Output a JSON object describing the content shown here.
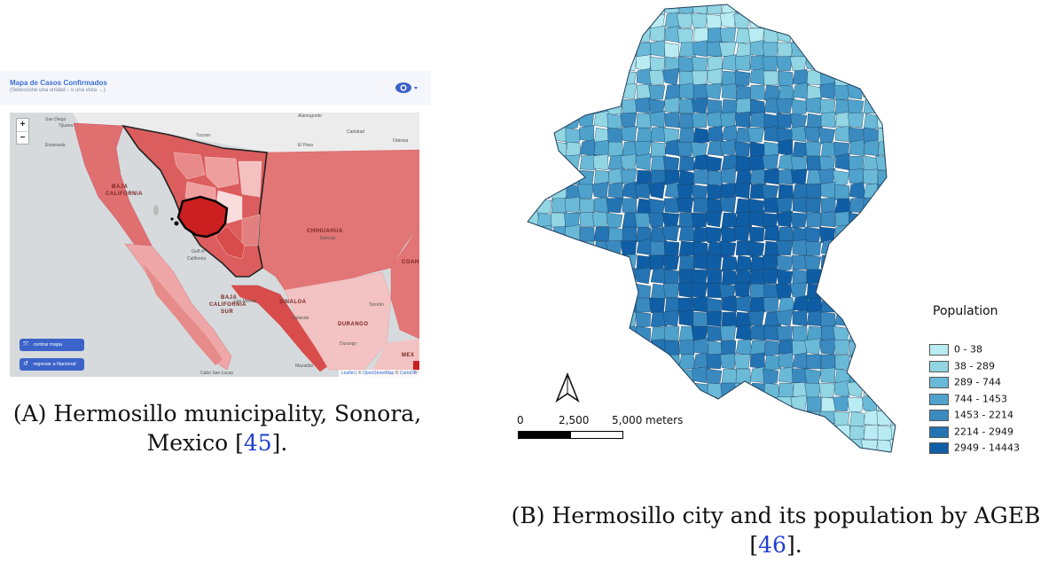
{
  "panel_a": {
    "app": {
      "title": "Mapa de Casos Confirmados",
      "subtitle": "(Seleccione una unidad ↓ o una vista →)"
    },
    "zoom": {
      "in": "+",
      "out": "−"
    },
    "buttons": {
      "center_label": "centrar mapa",
      "center_icon": "⤧",
      "back_label": "regresar a Nacional",
      "back_icon": "↺"
    },
    "attribution": {
      "leaflet": "Leaflet",
      "sep": " | © ",
      "osm": "OpenStreetMap",
      "mid": " © ",
      "carto": "CartoDB"
    },
    "places": {
      "san_diego": "San Diego",
      "tijuana": "Tijuana",
      "ensenada": "Ensenada",
      "tucson": "Tucson",
      "alamogordo": "Alamogordo",
      "carlsbad": "Carlsbad",
      "odessa": "Odessa",
      "el_paso": "El Paso",
      "baja": "BAJA",
      "california": "CALIFORNIA",
      "chihuahua": "CHIHUAHUA",
      "delicias": "Delicias",
      "gulf": "Gulf of",
      "gulf2": "California",
      "baja_sur1": "BAJA",
      "baja_sur2": "CALIFORNIA",
      "baja_sur3": "SUR",
      "los_mochis": "Los Mochis",
      "culiacan": "Culiacán",
      "sinaloa": "SINALOA",
      "torreon": "Torreón",
      "durango": "DURANGO",
      "durango_city": "Durango",
      "mazatlan": "Mazatlán",
      "cabo": "Cabo San Lucas",
      "coah": "COAH",
      "mex": "MEX"
    },
    "colors": {
      "ocean": "#d6dadc",
      "land": "#ececec",
      "state_dark": "#d94c4c",
      "state_mid": "#e27f7f",
      "state_light": "#f0b2b2",
      "highlight": "#cc1f1f",
      "button": "#3b63c9"
    },
    "caption": {
      "line1": "(A) Hermosillo municipality, Sonora,",
      "line2": "Mexico [",
      "ref": "45",
      "tail": "]."
    }
  },
  "panel_b": {
    "legend": {
      "title": "Population",
      "items": [
        {
          "label": "0 - 38",
          "color": "#b9ecf2"
        },
        {
          "label": "38 - 289",
          "color": "#92d5e3"
        },
        {
          "label": "289 - 744",
          "color": "#6ab9d7"
        },
        {
          "label": "744 - 1453",
          "color": "#4ea2cc"
        },
        {
          "label": "1453 - 2214",
          "color": "#3a8ac0"
        },
        {
          "label": "2214 - 2949",
          "color": "#2473b2"
        },
        {
          "label": "2949 - 14443",
          "color": "#0f5ea5"
        }
      ]
    },
    "scale_bar": {
      "zero": "0",
      "mid": "2,500",
      "end": "5,000",
      "unit": "meters"
    },
    "north_arrow": "north-arrow-icon",
    "caption": {
      "line1": "(B) Hermosillo city and its population by AGEB",
      "line2a": "[",
      "ref": "46",
      "line2b": "]."
    }
  }
}
